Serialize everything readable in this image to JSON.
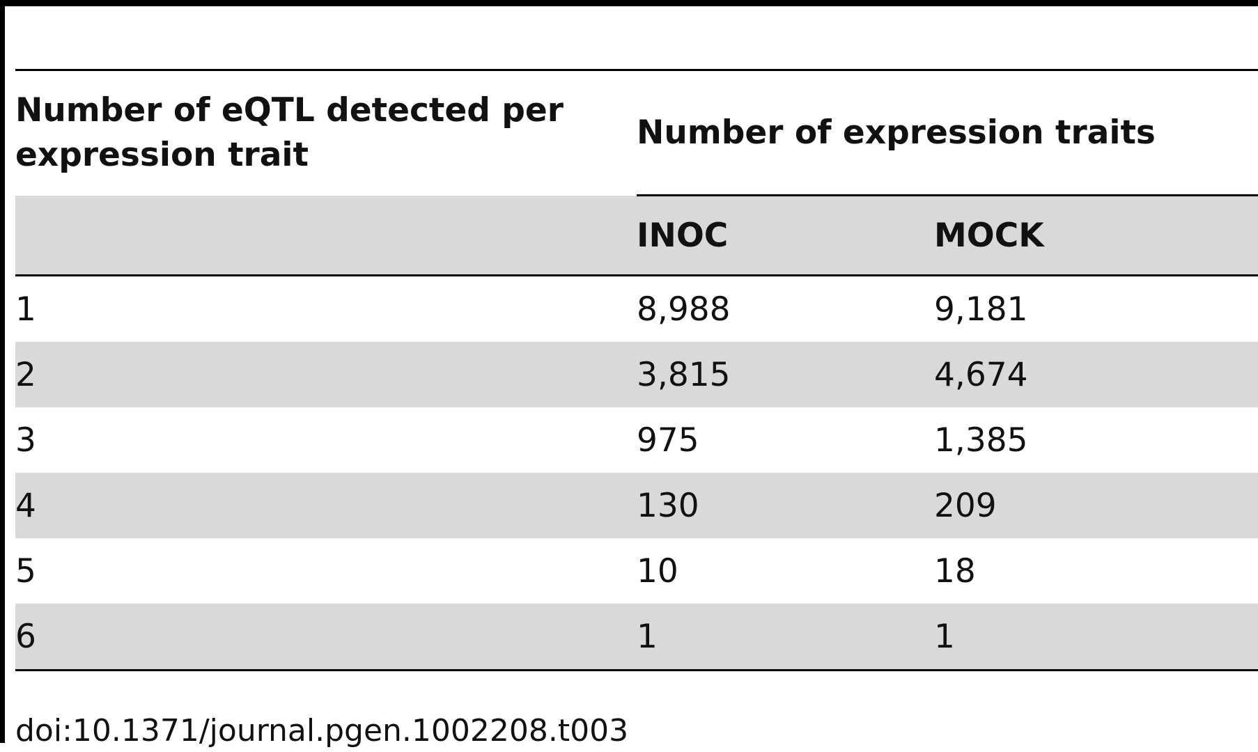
{
  "table": {
    "row_header": "Number of eQTL detected per expression trait",
    "group_header": "Number of expression traits",
    "columns": [
      "INOC",
      "MOCK"
    ],
    "rows": [
      {
        "n": "1",
        "inoc": "8,988",
        "mock": "9,181"
      },
      {
        "n": "2",
        "inoc": "3,815",
        "mock": "4,674"
      },
      {
        "n": "3",
        "inoc": "975",
        "mock": "1,385"
      },
      {
        "n": "4",
        "inoc": "130",
        "mock": "209"
      },
      {
        "n": "5",
        "inoc": "10",
        "mock": "18"
      },
      {
        "n": "6",
        "inoc": "1",
        "mock": "1"
      }
    ]
  },
  "doi": "doi:10.1371/journal.pgen.1002208.t003"
}
